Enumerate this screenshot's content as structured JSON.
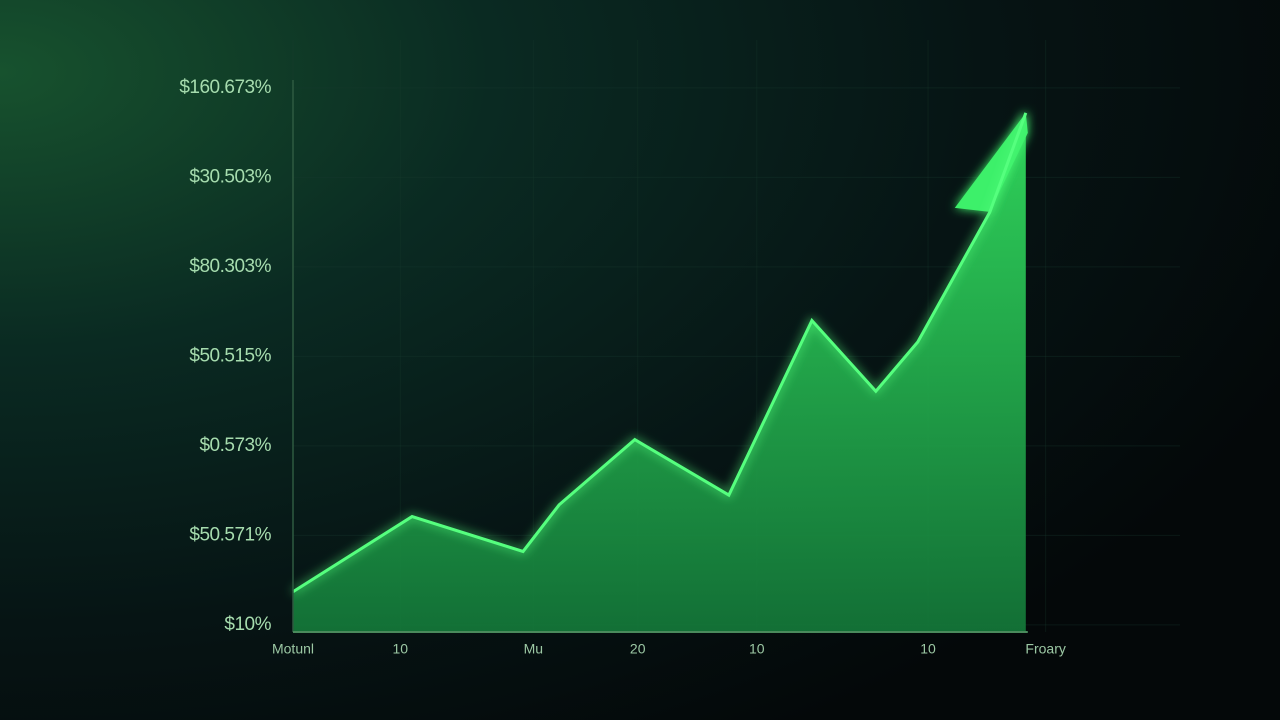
{
  "chart_data": {
    "type": "area",
    "x": [
      0,
      1.62,
      3.13,
      3.62,
      4.65,
      5.93,
      7.06,
      7.93,
      8.5,
      9.48,
      9.97
    ],
    "values": [
      0.37,
      1.21,
      0.82,
      1.34,
      2.07,
      1.45,
      3.4,
      2.61,
      3.16,
      4.61,
      5.72
    ],
    "color": "#2fd75a",
    "xlim": [
      0,
      10.5
    ],
    "xticks": [
      {
        "value": 0,
        "label": "Motunl"
      },
      {
        "value": 1.46,
        "label": "10"
      },
      {
        "value": 3.27,
        "label": "Mu"
      },
      {
        "value": 4.69,
        "label": "20"
      },
      {
        "value": 6.31,
        "label": "10"
      },
      {
        "value": 8.64,
        "label": "10"
      },
      {
        "value": 10.24,
        "label": "Froary"
      }
    ],
    "ylim": [
      -0.08,
      6.3
    ],
    "yticks": [
      {
        "value": 0,
        "label": "$10%"
      },
      {
        "value": 1,
        "label": "$50.571%"
      },
      {
        "value": 2,
        "label": "$0.573%"
      },
      {
        "value": 3,
        "label": "$50.515%"
      },
      {
        "value": 4,
        "label": "$80.303%"
      },
      {
        "value": 5,
        "label": "$30.503%"
      },
      {
        "value": 6,
        "label": "$160.673%"
      }
    ],
    "grid": true
  }
}
